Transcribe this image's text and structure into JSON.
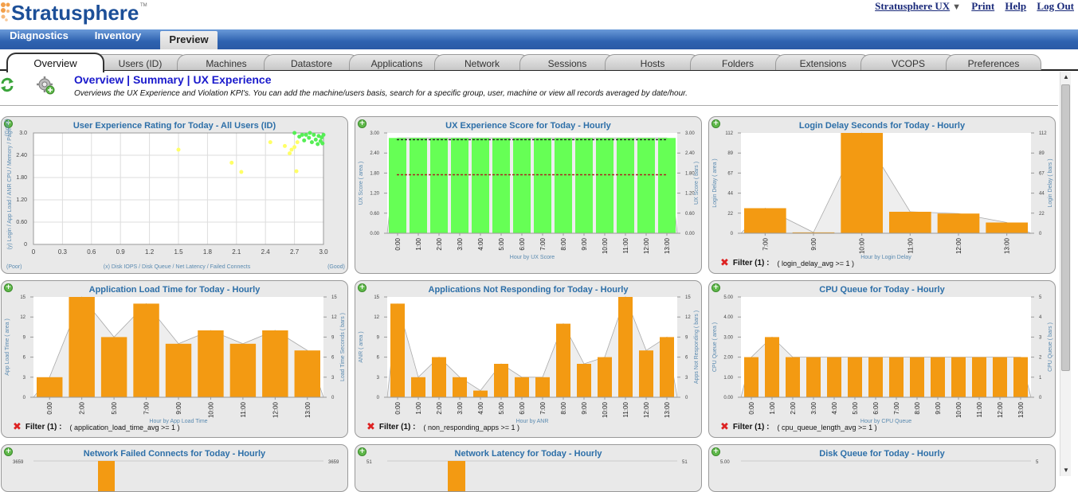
{
  "app": {
    "brand": "Stratusphere",
    "tm": "TM"
  },
  "topnav": {
    "product": "Stratusphere UX",
    "print": "Print",
    "help": "Help",
    "logout": "Log Out"
  },
  "main_tabs": [
    {
      "label": "Diagnostics"
    },
    {
      "label": "Inventory"
    },
    {
      "label": "Preview"
    }
  ],
  "sub_tabs": [
    {
      "label": "Overview"
    },
    {
      "label": "Users (ID)"
    },
    {
      "label": "Machines"
    },
    {
      "label": "Datastore"
    },
    {
      "label": "Applications"
    },
    {
      "label": "Network"
    },
    {
      "label": "Sessions"
    },
    {
      "label": "Hosts"
    },
    {
      "label": "Folders"
    },
    {
      "label": "Extensions"
    },
    {
      "label": "VCOPS"
    },
    {
      "label": "Preferences"
    }
  ],
  "page": {
    "title": "Overview | Summary | UX Experience",
    "description": "Overviews the UX Experience and Violation KPI's. You can add the machine/users basis, search for a specific group, user, machine or view all records averaged by date/hour."
  },
  "colors": {
    "bar": "#f39a12",
    "green_bar": "#66ff55",
    "title": "#2d6fa8",
    "axis": "#5a8ab0"
  },
  "panels": [
    {
      "title": "User Experience Rating for Today - All Users (ID)",
      "filter": null,
      "chart_data": {
        "type": "scatter",
        "ylabel": "(y) Login / App Load / ANR CPU / Memory / Page",
        "xlabel": "(x) Disk IOPS / Disk Queue / Net Latency / Failed Connects",
        "x_left": "(Poor)",
        "x_right": "(Good)",
        "y_top": "(Good)",
        "xlim": [
          0,
          3.0
        ],
        "ylim": [
          0,
          3.0
        ],
        "xticks": [
          "0",
          "0.3",
          "0.6",
          "0.9",
          "1.2",
          "1.5",
          "1.8",
          "2.1",
          "2.4",
          "2.7",
          "3.0"
        ],
        "yticks": [
          "0",
          "0.60",
          "1.20",
          "1.80",
          "2.40",
          "3.0"
        ],
        "series": [
          {
            "color": "#ffff66",
            "points": [
              [
                1.5,
                2.55
              ],
              [
                2.05,
                2.2
              ],
              [
                2.15,
                1.95
              ],
              [
                2.45,
                2.75
              ],
              [
                2.6,
                2.65
              ],
              [
                2.65,
                2.45
              ],
              [
                2.67,
                2.55
              ],
              [
                2.7,
                2.62
              ],
              [
                2.72,
                1.97
              ],
              [
                2.73,
                2.75
              ]
            ]
          },
          {
            "color": "#55ee55",
            "points": [
              [
                2.7,
                3.0
              ],
              [
                2.75,
                2.9
              ],
              [
                2.8,
                2.8
              ],
              [
                2.82,
                2.95
              ],
              [
                2.85,
                2.87
              ],
              [
                2.88,
                2.75
              ],
              [
                2.9,
                2.95
              ],
              [
                2.92,
                2.82
              ],
              [
                2.94,
                2.7
              ],
              [
                2.95,
                2.92
              ],
              [
                2.97,
                2.78
              ],
              [
                2.98,
                2.88
              ],
              [
                3.0,
                2.95
              ],
              [
                2.99,
                2.72
              ],
              [
                2.86,
                3.0
              ],
              [
                2.78,
                2.95
              ]
            ]
          }
        ]
      }
    },
    {
      "title": "UX Experience Score for Today - Hourly",
      "filter": null,
      "chart_data": {
        "type": "bar",
        "bar_color": "#66ff55",
        "categories": [
          "0:00",
          "1:00",
          "2:00",
          "3:00",
          "4:00",
          "5:00",
          "6:00",
          "7:00",
          "8:00",
          "9:00",
          "10:00",
          "11:00",
          "12:00",
          "13:00"
        ],
        "values": [
          2.85,
          2.85,
          2.85,
          2.85,
          2.85,
          2.85,
          2.85,
          2.85,
          2.85,
          2.85,
          2.85,
          2.85,
          2.85,
          2.85
        ],
        "ylim": [
          0,
          3.0
        ],
        "yticks_left": [
          "0.00",
          "0.60",
          "1.20",
          "1.80",
          "2.40",
          "3.00"
        ],
        "yticks_right": [
          "0.00",
          "0.60",
          "1.20",
          "1.80",
          "2.40",
          "3.00"
        ],
        "ylabel_left": "UX Score ( area )",
        "ylabel_right": "UX Score ( bars )",
        "xlabel": "Hour by UX Score",
        "ref_lines": [
          {
            "value": 2.8,
            "color": "#222"
          },
          {
            "value": 1.75,
            "color": "#aa2222"
          }
        ]
      }
    },
    {
      "title": "Login Delay Seconds for Today - Hourly",
      "filter": {
        "label": "Filter (1) :",
        "condition": "( login_delay_avg >= 1 )"
      },
      "chart_data": {
        "type": "bar",
        "categories": [
          "7:00",
          "9:00",
          "10:00",
          "11:00",
          "12:00",
          "13:00"
        ],
        "values": [
          28,
          1,
          112,
          24,
          22,
          12
        ],
        "ylim": [
          0,
          112
        ],
        "yticks_left": [
          "0",
          "22",
          "44",
          "67",
          "89",
          "112"
        ],
        "yticks_right": [
          "0",
          "22",
          "44",
          "67",
          "89",
          "112"
        ],
        "ylabel_left": "Login Delay ( area )",
        "ylabel_right": "Login Delay ( bars )",
        "xlabel": "Hour by Login Delay"
      }
    },
    {
      "title": "Application Load Time for Today - Hourly",
      "filter": {
        "label": "Filter (1) :",
        "condition": "( application_load_time_avg >= 1 )"
      },
      "chart_data": {
        "type": "bar",
        "categories": [
          "0:00",
          "2:00",
          "5:00",
          "7:00",
          "9:00",
          "10:00",
          "11:00",
          "12:00",
          "13:00"
        ],
        "values": [
          3,
          15,
          9,
          14,
          8,
          10,
          8,
          10,
          7
        ],
        "ylim": [
          0,
          15
        ],
        "yticks_left": [
          "0",
          "3",
          "6",
          "9",
          "12",
          "15"
        ],
        "yticks_right": [
          "0",
          "3",
          "6",
          "9",
          "12",
          "15"
        ],
        "ylabel_left": "App Load Time ( area )",
        "ylabel_right": "Load Time Seconds ( bars )",
        "xlabel": "Hour by App Load Time"
      }
    },
    {
      "title": "Applications Not Responding for Today - Hourly",
      "filter": {
        "label": "Filter (1) :",
        "condition": "( non_responding_apps >= 1 )"
      },
      "chart_data": {
        "type": "bar",
        "categories": [
          "0:00",
          "1:00",
          "2:00",
          "3:00",
          "4:00",
          "5:00",
          "6:00",
          "7:00",
          "8:00",
          "9:00",
          "10:00",
          "11:00",
          "12:00",
          "13:00"
        ],
        "values": [
          14,
          3,
          6,
          3,
          1,
          5,
          3,
          3,
          11,
          5,
          6,
          15,
          7,
          9
        ],
        "ylim": [
          0,
          15
        ],
        "yticks_left": [
          "0",
          "3",
          "6",
          "9",
          "12",
          "15"
        ],
        "yticks_right": [
          "0",
          "3",
          "6",
          "9",
          "12",
          "15"
        ],
        "ylabel_left": "ANR ( area )",
        "ylabel_right": "Apps Not Responding ( bars )",
        "xlabel": "Hour by ANR"
      }
    },
    {
      "title": "CPU Queue for Today - Hourly",
      "filter": {
        "label": "Filter (1) :",
        "condition": "( cpu_queue_length_avg >= 1 )"
      },
      "chart_data": {
        "type": "bar",
        "categories": [
          "0:00",
          "1:00",
          "2:00",
          "3:00",
          "4:00",
          "5:00",
          "6:00",
          "7:00",
          "8:00",
          "9:00",
          "10:00",
          "11:00",
          "12:00",
          "13:00"
        ],
        "values": [
          2,
          3,
          2,
          2,
          2,
          2,
          2,
          2,
          2,
          2,
          2,
          2,
          2,
          2
        ],
        "ylim": [
          0,
          5
        ],
        "yticks_left": [
          "0.00",
          "1.00",
          "2.00",
          "3.00",
          "4.00",
          "5.00"
        ],
        "yticks_right": [
          "0",
          "1",
          "2",
          "3",
          "4",
          "5"
        ],
        "ylabel_left": "CPU Queue ( area )",
        "ylabel_right": "CPU Queue ( bars )",
        "xlabel": "Hour by CPU Queue"
      }
    },
    {
      "title": "Network Failed Connects for Today - Hourly",
      "filter": null,
      "chart_data": {
        "type": "bar",
        "categories": [],
        "values": [],
        "ylim": [
          0,
          3659
        ],
        "yticks_left": [
          "3659"
        ],
        "yticks_right": [
          "3659"
        ],
        "bar_peak_label": "3659"
      }
    },
    {
      "title": "Network Latency for Today - Hourly",
      "filter": null,
      "chart_data": {
        "type": "bar",
        "categories": [],
        "values": [],
        "ylim": [
          0,
          51
        ],
        "yticks_left": [
          "51"
        ],
        "yticks_right": [
          "51"
        ]
      }
    },
    {
      "title": "Disk Queue for Today - Hourly",
      "filter": null,
      "chart_data": {
        "type": "bar",
        "categories": [],
        "values": [],
        "ylim": [
          0,
          5
        ],
        "yticks_left": [
          "5.00"
        ],
        "yticks_right": [
          "5"
        ]
      }
    }
  ]
}
